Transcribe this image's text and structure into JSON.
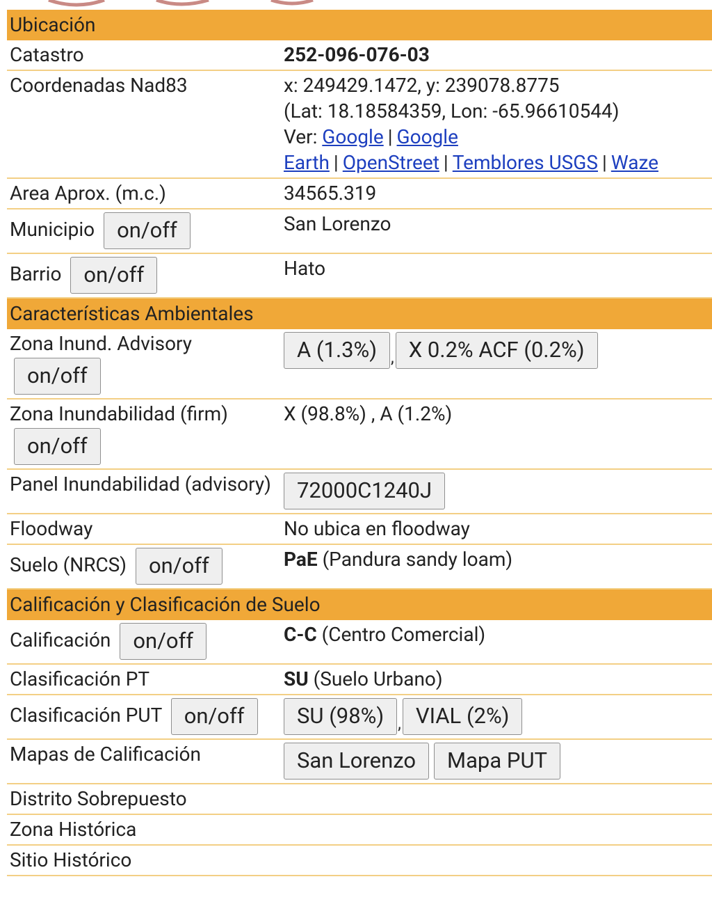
{
  "sections": [
    {
      "title": "Ubicación",
      "rows": [
        {
          "label": "Catastro",
          "bold": "252-096-076-03"
        },
        {
          "label": "Coordenadas Nad83",
          "lines": [
            "x: 249429.1472, y: 239078.8775",
            "(Lat: 18.18584359, Lon: -65.96610544)"
          ],
          "prefix": "Ver:",
          "links": [
            "Google",
            "Google Earth",
            "OpenStreet",
            "Temblores USGS",
            "Waze"
          ],
          "separator": "|"
        },
        {
          "label": "Area Aprox. (m.c.)",
          "text": "34565.319"
        },
        {
          "label": "Municipio",
          "toggle": "on/off",
          "text": "San Lorenzo"
        },
        {
          "label": "Barrio",
          "toggle": "on/off",
          "text": "Hato"
        }
      ]
    },
    {
      "title": "Características Ambientales",
      "rows": [
        {
          "label": "Zona Inund. Advisory",
          "toggle": "on/off",
          "buttons": [
            "A (1.3%)",
            "X 0.2% ACF (0.2%)"
          ],
          "separator": ","
        },
        {
          "label": "Zona Inundabilidad (firm)",
          "toggle": "on/off",
          "text": "X (98.8%) , A (1.2%)"
        },
        {
          "label": "Panel Inundabilidad (advisory)",
          "buttons": [
            "72000C1240J"
          ]
        },
        {
          "label": "Floodway",
          "text": "No ubica en floodway"
        },
        {
          "label": "Suelo (NRCS)",
          "toggle": "on/off",
          "bold": "PaE",
          "text": "(Pandura sandy loam)"
        }
      ]
    },
    {
      "title": "Calificación y Clasificación de Suelo",
      "rows": [
        {
          "label": "Calificación",
          "toggle": "on/off",
          "bold": "C-C",
          "text": "(Centro Comercial)"
        },
        {
          "label": "Clasificación PT",
          "bold": "SU",
          "text": "(Suelo Urbano)"
        },
        {
          "label": "Clasificación PUT",
          "toggle": "on/off",
          "buttons": [
            "SU (98%)",
            "VIAL (2%)"
          ],
          "separator": ","
        },
        {
          "label": "Mapas de Calificación",
          "buttons": [
            "San Lorenzo",
            "Mapa PUT"
          ]
        },
        {
          "label": "Distrito Sobrepuesto"
        },
        {
          "label": "Zona Histórica"
        },
        {
          "label": "Sitio Histórico"
        }
      ]
    }
  ]
}
